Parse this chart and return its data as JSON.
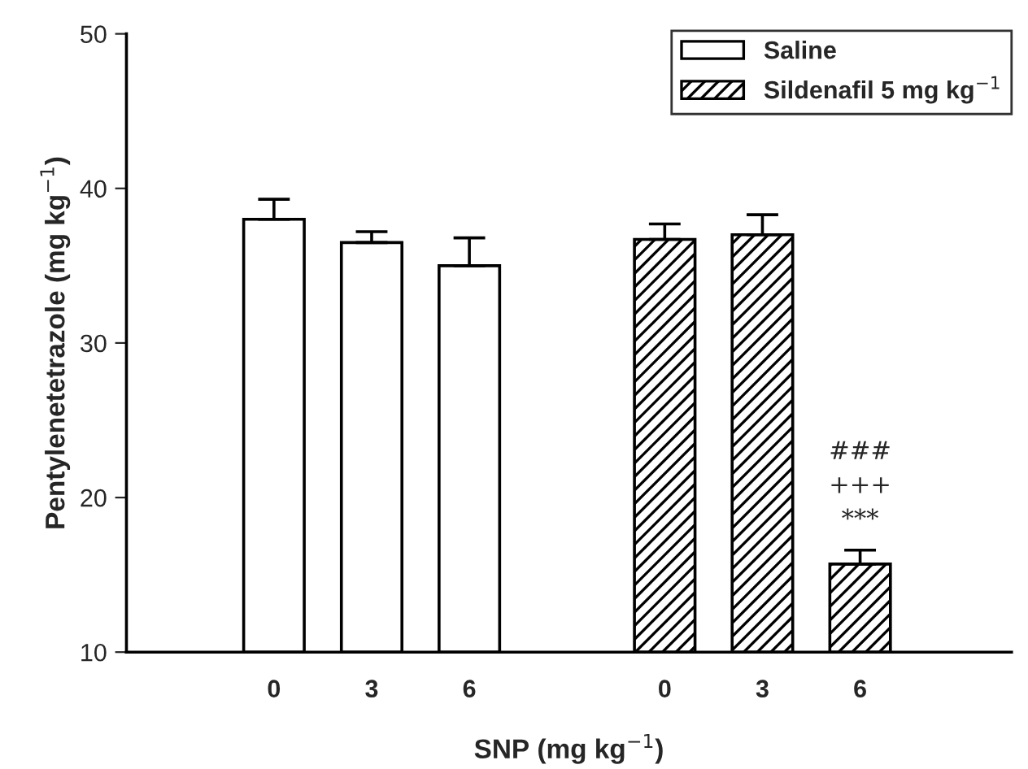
{
  "chart_data": {
    "type": "bar",
    "xlabel": "SNP (mg kg$^{−1}$)",
    "ylabel": "Pentylenetetrazole (mg kg$^{−1}$)",
    "categories": [
      "0",
      "3",
      "6",
      null,
      "0",
      "3",
      "6"
    ],
    "series": [
      {
        "name": "Saline",
        "color": "#ffffff",
        "values": [
          38.0,
          36.5,
          35.0,
          null,
          null,
          null,
          null
        ],
        "errors": [
          1.3,
          0.7,
          1.8,
          null,
          null,
          null,
          null
        ]
      },
      {
        "name": "Sildenafil 5 mg kg$^{−1}$",
        "color": "#000000",
        "values": [
          null,
          null,
          null,
          null,
          36.7,
          37.0,
          15.7
        ],
        "errors": [
          null,
          null,
          null,
          null,
          1.0,
          1.3,
          0.9
        ]
      }
    ],
    "annotations": [
      "###",
      "+++",
      "***"
    ],
    "ylim": [
      10,
      50
    ],
    "yticks": [
      10,
      20,
      30,
      40,
      50
    ],
    "grid": false,
    "legend": "top right"
  }
}
